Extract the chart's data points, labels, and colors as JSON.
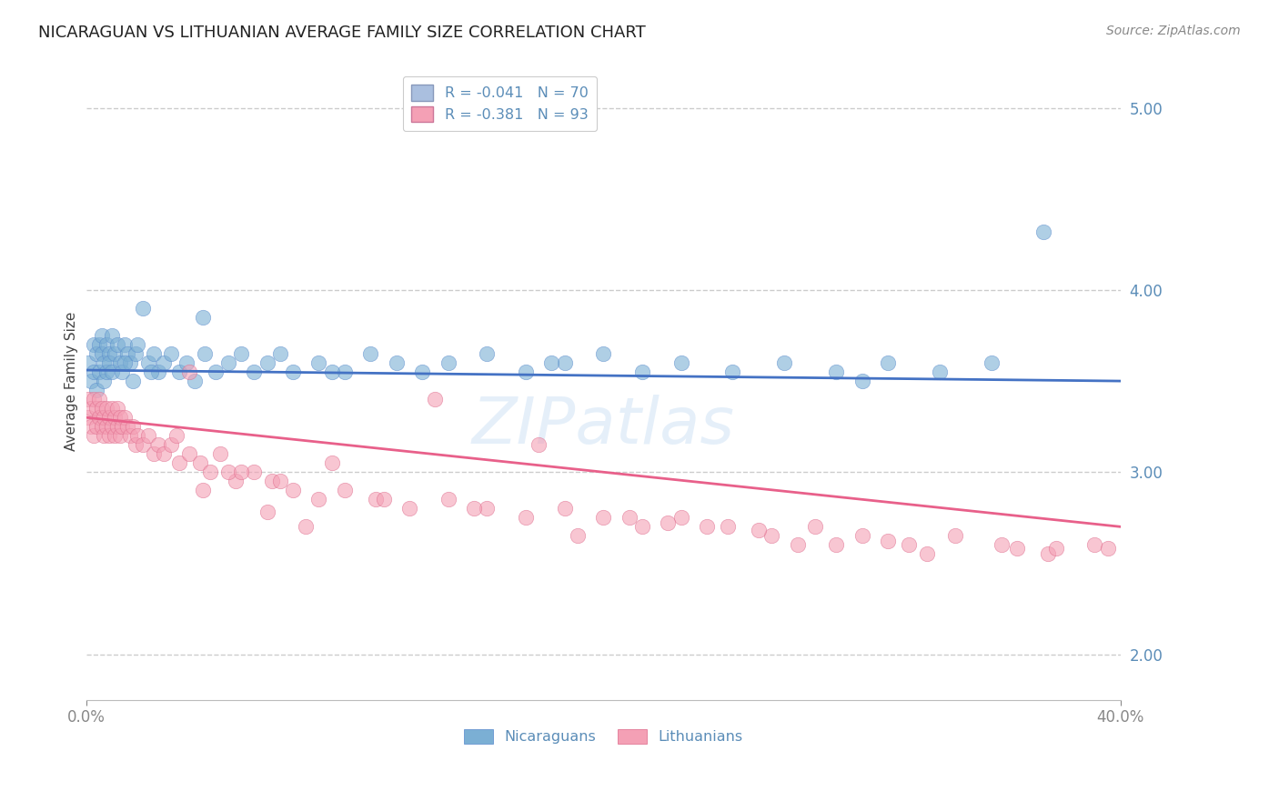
{
  "title": "NICARAGUAN VS LITHUANIAN AVERAGE FAMILY SIZE CORRELATION CHART",
  "source": "Source: ZipAtlas.com",
  "ylabel": "Average Family Size",
  "xlim": [
    0.0,
    0.4
  ],
  "ylim": [
    1.75,
    5.25
  ],
  "yticks": [
    2.0,
    3.0,
    4.0,
    5.0
  ],
  "blue_R": -0.041,
  "blue_N": 70,
  "pink_R": -0.381,
  "pink_N": 93,
  "blue_color": "#7BAFD4",
  "pink_color": "#F4A0B5",
  "blue_line_color": "#4472C4",
  "pink_line_color": "#E8608A",
  "title_fontsize": 13,
  "source_fontsize": 10,
  "axis_fontsize": 11,
  "tick_fontsize": 12,
  "blue_x": [
    0.001,
    0.002,
    0.003,
    0.003,
    0.004,
    0.004,
    0.005,
    0.005,
    0.006,
    0.006,
    0.007,
    0.007,
    0.008,
    0.008,
    0.009,
    0.009,
    0.01,
    0.01,
    0.011,
    0.012,
    0.013,
    0.014,
    0.015,
    0.016,
    0.017,
    0.018,
    0.019,
    0.02,
    0.022,
    0.024,
    0.026,
    0.028,
    0.03,
    0.033,
    0.036,
    0.039,
    0.042,
    0.046,
    0.05,
    0.055,
    0.06,
    0.065,
    0.07,
    0.075,
    0.08,
    0.09,
    0.1,
    0.11,
    0.12,
    0.13,
    0.14,
    0.155,
    0.17,
    0.185,
    0.2,
    0.215,
    0.23,
    0.25,
    0.27,
    0.29,
    0.31,
    0.33,
    0.35,
    0.3,
    0.18,
    0.095,
    0.045,
    0.025,
    0.37,
    0.015
  ],
  "blue_y": [
    3.6,
    3.5,
    3.7,
    3.55,
    3.65,
    3.45,
    3.7,
    3.55,
    3.65,
    3.75,
    3.6,
    3.5,
    3.7,
    3.55,
    3.65,
    3.6,
    3.75,
    3.55,
    3.65,
    3.7,
    3.6,
    3.55,
    3.7,
    3.65,
    3.6,
    3.5,
    3.65,
    3.7,
    3.9,
    3.6,
    3.65,
    3.55,
    3.6,
    3.65,
    3.55,
    3.6,
    3.5,
    3.65,
    3.55,
    3.6,
    3.65,
    3.55,
    3.6,
    3.65,
    3.55,
    3.6,
    3.55,
    3.65,
    3.6,
    3.55,
    3.6,
    3.65,
    3.55,
    3.6,
    3.65,
    3.55,
    3.6,
    3.55,
    3.6,
    3.55,
    3.6,
    3.55,
    3.6,
    3.5,
    3.6,
    3.55,
    3.85,
    3.55,
    4.32,
    3.6
  ],
  "pink_x": [
    0.001,
    0.001,
    0.002,
    0.002,
    0.003,
    0.003,
    0.004,
    0.004,
    0.005,
    0.005,
    0.006,
    0.006,
    0.007,
    0.007,
    0.008,
    0.008,
    0.009,
    0.009,
    0.01,
    0.01,
    0.011,
    0.011,
    0.012,
    0.012,
    0.013,
    0.013,
    0.014,
    0.015,
    0.016,
    0.017,
    0.018,
    0.019,
    0.02,
    0.022,
    0.024,
    0.026,
    0.028,
    0.03,
    0.033,
    0.036,
    0.04,
    0.044,
    0.048,
    0.052,
    0.058,
    0.065,
    0.072,
    0.08,
    0.09,
    0.1,
    0.112,
    0.125,
    0.14,
    0.155,
    0.17,
    0.185,
    0.2,
    0.215,
    0.23,
    0.248,
    0.265,
    0.282,
    0.3,
    0.318,
    0.336,
    0.354,
    0.372,
    0.39,
    0.395,
    0.04,
    0.055,
    0.075,
    0.095,
    0.115,
    0.15,
    0.21,
    0.26,
    0.31,
    0.36,
    0.135,
    0.175,
    0.225,
    0.275,
    0.325,
    0.375,
    0.06,
    0.035,
    0.045,
    0.07,
    0.085,
    0.24,
    0.19,
    0.29
  ],
  "pink_y": [
    3.4,
    3.3,
    3.35,
    3.25,
    3.4,
    3.2,
    3.35,
    3.25,
    3.4,
    3.3,
    3.35,
    3.25,
    3.3,
    3.2,
    3.35,
    3.25,
    3.3,
    3.2,
    3.35,
    3.25,
    3.3,
    3.2,
    3.35,
    3.25,
    3.3,
    3.2,
    3.25,
    3.3,
    3.25,
    3.2,
    3.25,
    3.15,
    3.2,
    3.15,
    3.2,
    3.1,
    3.15,
    3.1,
    3.15,
    3.05,
    3.1,
    3.05,
    3.0,
    3.1,
    2.95,
    3.0,
    2.95,
    2.9,
    2.85,
    2.9,
    2.85,
    2.8,
    2.85,
    2.8,
    2.75,
    2.8,
    2.75,
    2.7,
    2.75,
    2.7,
    2.65,
    2.7,
    2.65,
    2.6,
    2.65,
    2.6,
    2.55,
    2.6,
    2.58,
    3.55,
    3.0,
    2.95,
    3.05,
    2.85,
    2.8,
    2.75,
    2.68,
    2.62,
    2.58,
    3.4,
    3.15,
    2.72,
    2.6,
    2.55,
    2.58,
    3.0,
    3.2,
    2.9,
    2.78,
    2.7,
    2.7,
    2.65,
    2.6
  ]
}
